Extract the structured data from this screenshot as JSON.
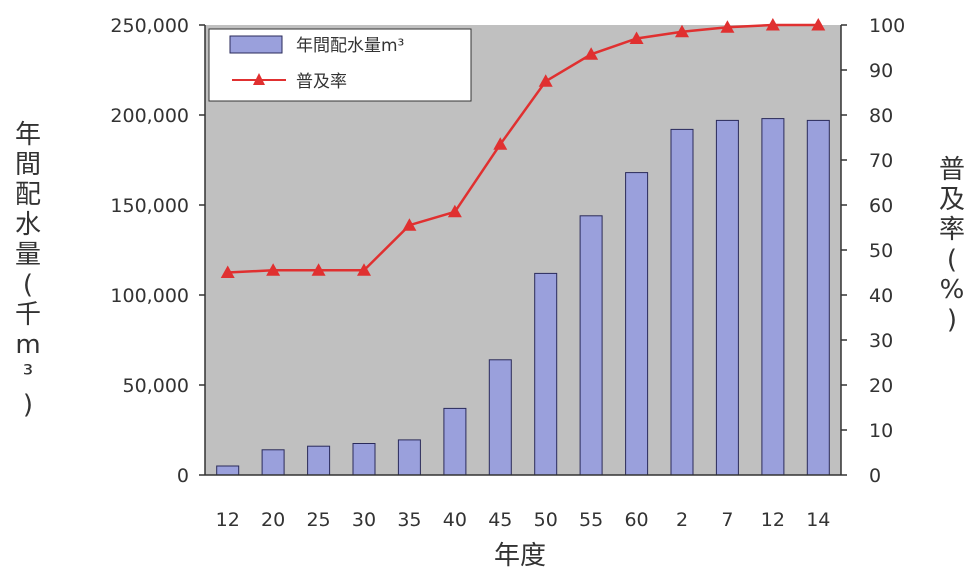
{
  "chart_data": {
    "type": "bar",
    "categories": [
      "12",
      "20",
      "25",
      "30",
      "35",
      "40",
      "45",
      "50",
      "55",
      "60",
      "2",
      "7",
      "12",
      "14"
    ],
    "xlabel": "年度",
    "ylabel_left": "年間配水量(千m³)",
    "ylabel_right": "普及率(%)",
    "ylim_left": [
      0,
      250000
    ],
    "ylim_right": [
      0,
      100
    ],
    "yticks_left": [
      "0",
      "50,000",
      "100,000",
      "150,000",
      "200,000",
      "250,000"
    ],
    "yticks_right": [
      "0",
      "10",
      "20",
      "30",
      "40",
      "50",
      "60",
      "70",
      "80",
      "90",
      "100"
    ],
    "grid": false,
    "legend_position": "top-left",
    "series": [
      {
        "name": "年間配水量m³",
        "type": "bar",
        "axis": "left",
        "color": "#9aa0dc",
        "values": [
          5000,
          14000,
          16000,
          17500,
          19500,
          37000,
          64000,
          112000,
          144000,
          168000,
          192000,
          197000,
          198000,
          197000
        ]
      },
      {
        "name": "普及率",
        "type": "line",
        "axis": "right",
        "color": "#e03030",
        "marker": "triangle",
        "values": [
          45,
          45.5,
          45.5,
          45.5,
          55.5,
          58.5,
          73.5,
          87.5,
          93.5,
          97,
          98.5,
          99.5,
          100,
          100
        ]
      }
    ],
    "colors": {
      "plot_background": "#c0c0c0",
      "bar_stroke": "#2a2a5a"
    }
  }
}
